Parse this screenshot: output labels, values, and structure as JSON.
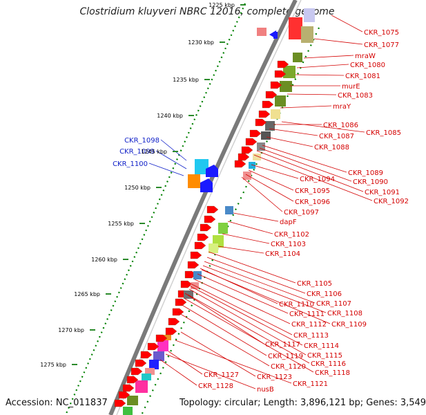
{
  "title": "Clostridium kluyveri NBRC 12016, complete genome",
  "footer": {
    "accession": "Accession: NC_011837",
    "summary": "Topology: circular; Length: 3,896,121 bp; Genes: 3,549"
  },
  "colors": {
    "right_strand_label": "#d40000",
    "left_strand_label": "#1020c8",
    "forward_gene": "#ff0000",
    "reverse_gene": "#1a1aff",
    "backbone": "#888888",
    "tick_dots": "#008000"
  },
  "ticks": [
    {
      "label": "1225 kbp"
    },
    {
      "label": "1230 kbp"
    },
    {
      "label": "1235 kbp"
    },
    {
      "label": "1240 kbp"
    },
    {
      "label": "1245 kbp"
    },
    {
      "label": "1250 kbp"
    },
    {
      "label": "1255 kbp"
    },
    {
      "label": "1260 kbp"
    },
    {
      "label": "1265 kbp"
    },
    {
      "label": "1270 kbp"
    },
    {
      "label": "1275 kbp"
    }
  ],
  "left_labels": [
    "CKR_1098",
    "CKR_1099",
    "CKR_1100"
  ],
  "right_labels": [
    "CKR_1075",
    "CKR_1077",
    "mraW",
    "CKR_1080",
    "CKR_1081",
    "murE",
    "CKR_1083",
    "mraY",
    "CKR_1086",
    "CKR_1085",
    "CKR_1087",
    "CKR_1088",
    "CKR_1089",
    "CKR_1090",
    "CKR_1091",
    "CKR_1092",
    "CKR_1094",
    "CKR_1095",
    "CKR_1096",
    "CKR_1097",
    "dapF",
    "CKR_1102",
    "CKR_1103",
    "CKR_1104",
    "CKR_1105",
    "CKR_1106",
    "CKR_1107",
    "CKR_1110",
    "CKR_1108",
    "CKR_1111",
    "CKR_1109",
    "CKR_1112",
    "CKR_1113",
    "CKR_1114",
    "CKR_1117",
    "CKR_1115",
    "CKR_1119",
    "CKR_1116",
    "CKR_1120",
    "CKR_1118",
    "CKR_1127",
    "CKR_1123",
    "CKR_1121",
    "CKR_1128",
    "nusB"
  ]
}
